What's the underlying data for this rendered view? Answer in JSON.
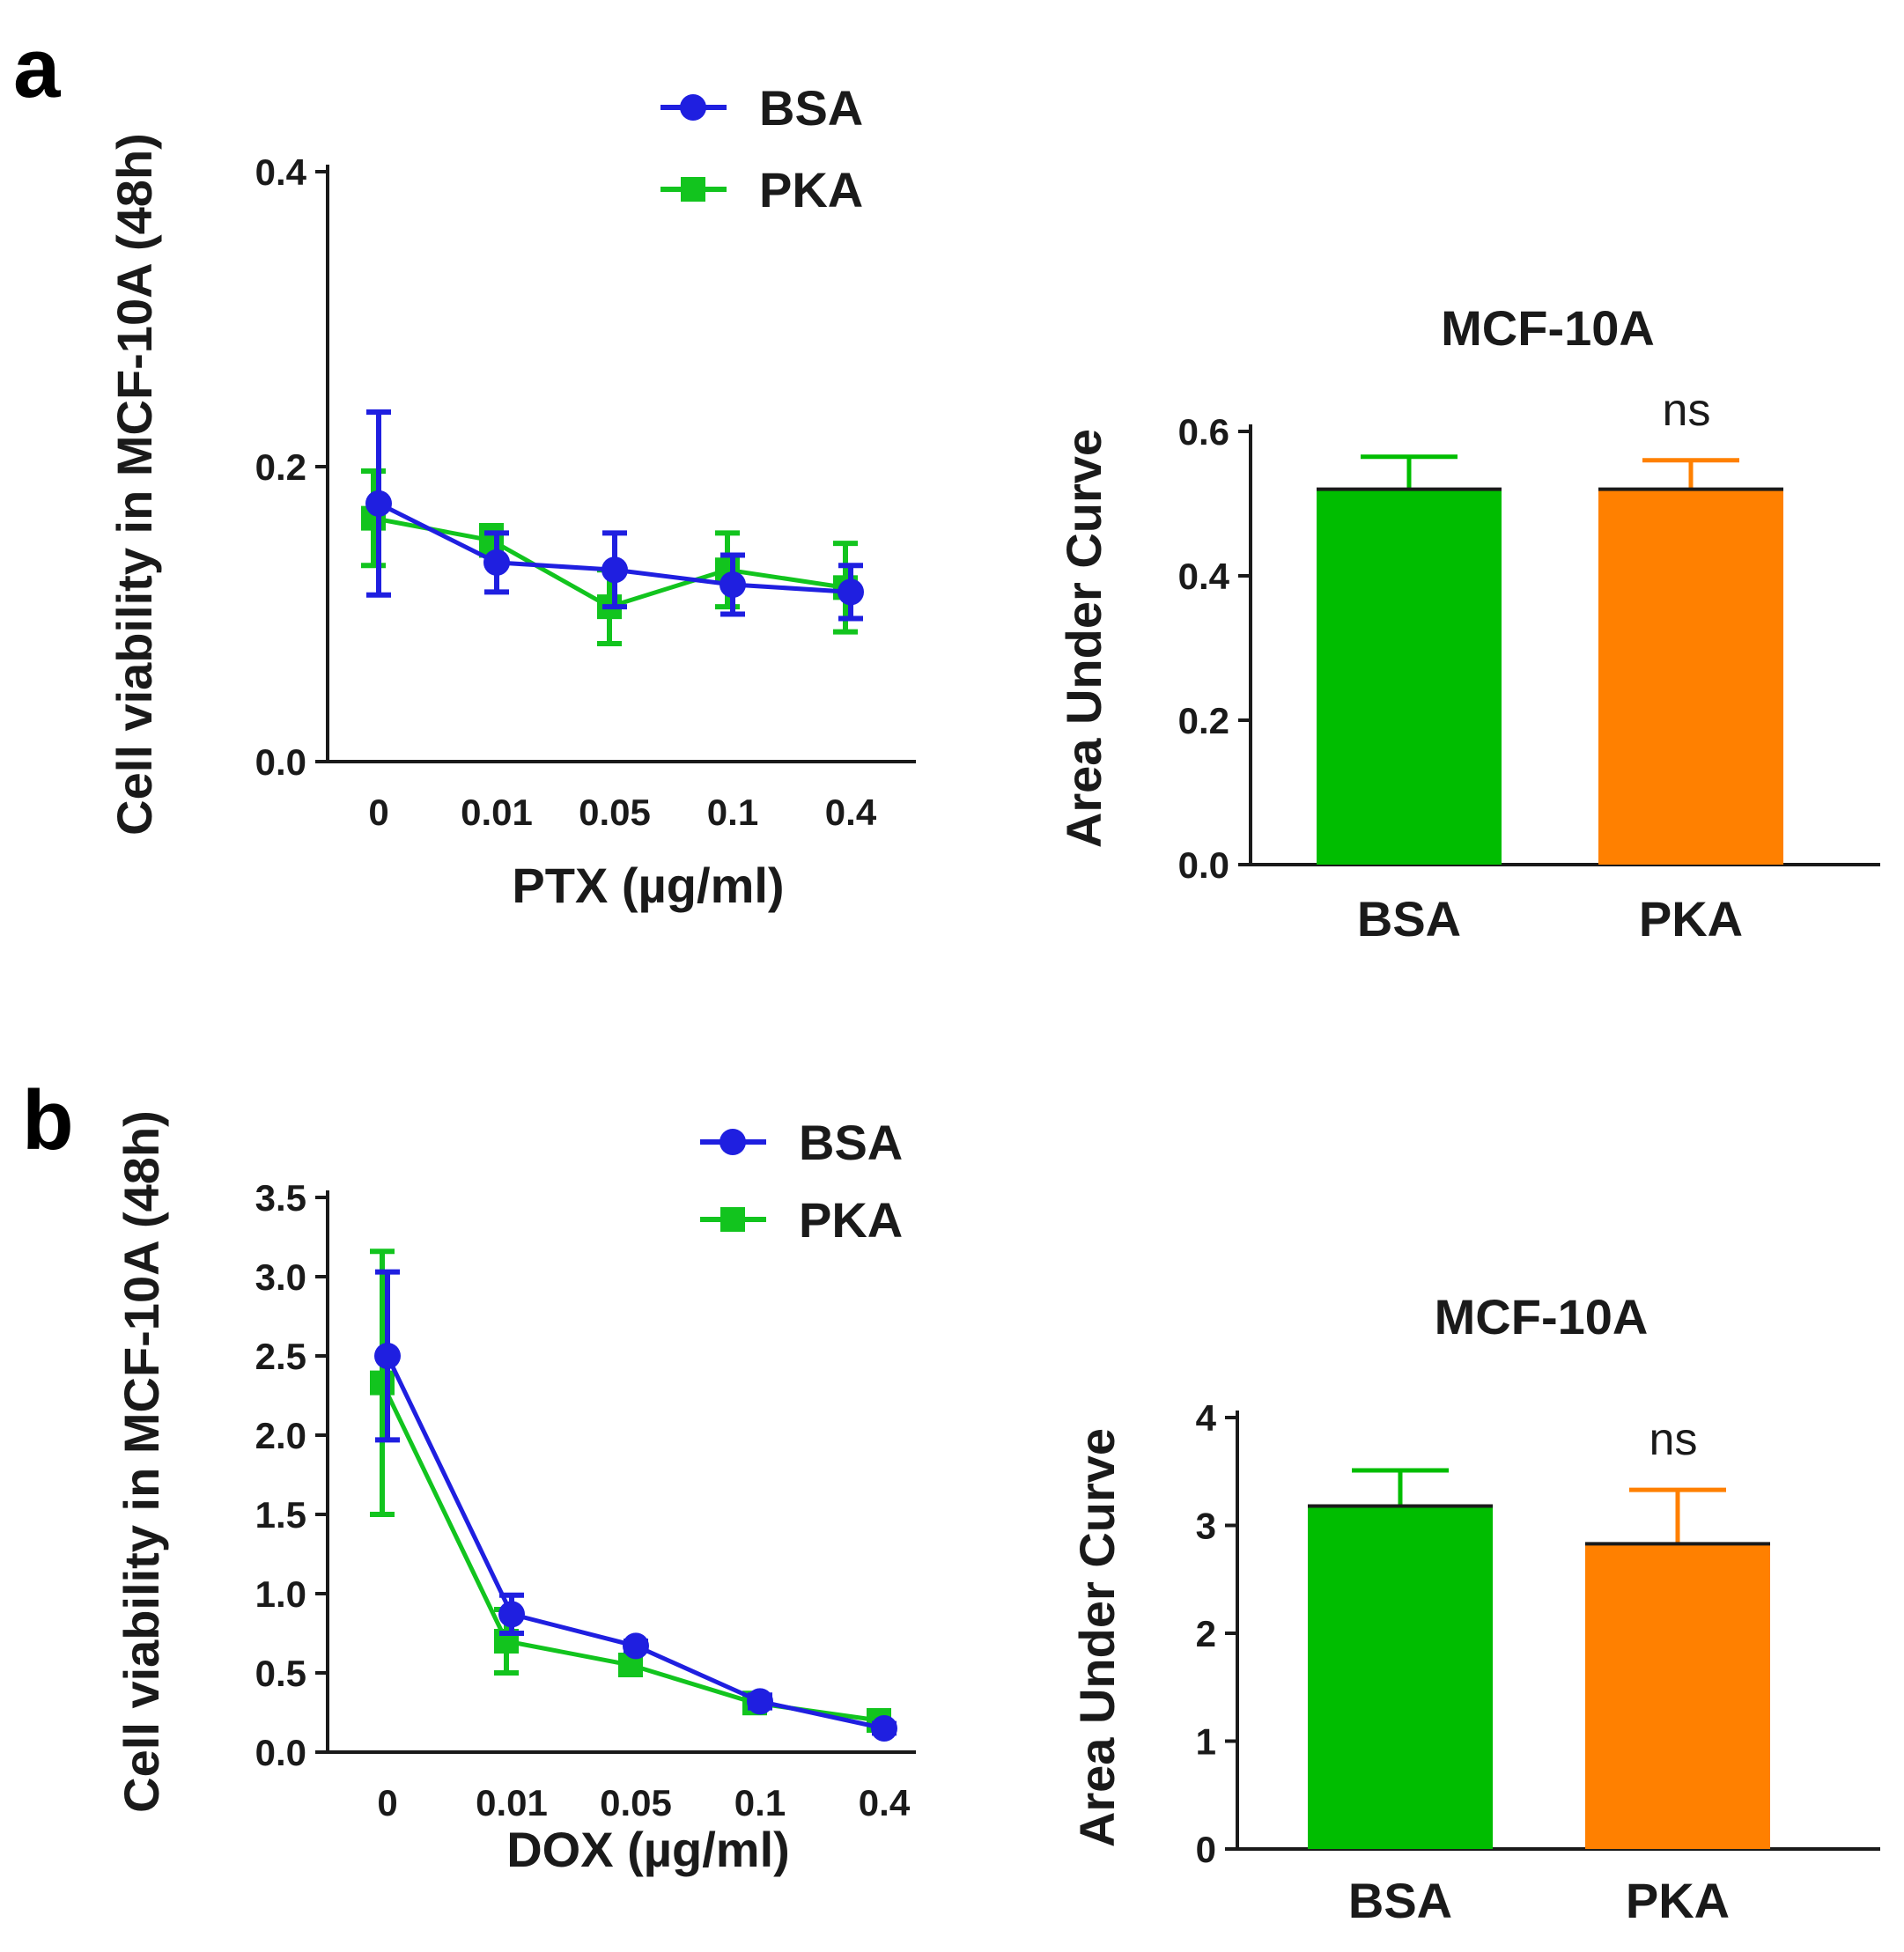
{
  "panels": [
    {
      "letter": "a"
    },
    {
      "letter": "b"
    }
  ],
  "colors": {
    "bsa_line": "#1f1fe0",
    "pka_line": "#12c41e",
    "bar_bsa": "#00bd00",
    "bar_pka": "#ff8000",
    "axis": "#1a1a1a"
  },
  "chart_data": [
    {
      "panel": "a",
      "type": "line",
      "x": [
        "0",
        "0.01",
        "0.05",
        "0.1",
        "0.4"
      ],
      "xlabel": "PTX (µg/ml)",
      "ylabel": "Cell viability in MCF-10A (48h)",
      "ylim": [
        0,
        0.4
      ],
      "yticks": [
        0,
        0.2,
        0.4
      ],
      "ytick_labels": [
        "0.0",
        "0.2",
        "0.4"
      ],
      "legend_position": "top-right",
      "series": [
        {
          "name": "BSA",
          "marker": "circle",
          "values": [
            0.175,
            0.135,
            0.13,
            0.12,
            0.115
          ],
          "err": [
            0.062,
            0.02,
            0.025,
            0.02,
            0.018
          ]
        },
        {
          "name": "PKA",
          "marker": "square",
          "values": [
            0.165,
            0.15,
            0.105,
            0.13,
            0.118
          ],
          "err": [
            0.032,
            0.01,
            0.025,
            0.025,
            0.03
          ]
        }
      ]
    },
    {
      "panel": "a",
      "type": "bar",
      "title": "MCF-10A",
      "categories": [
        "BSA",
        "PKA"
      ],
      "values": [
        0.52,
        0.52
      ],
      "err": [
        0.045,
        0.04
      ],
      "ylabel": "Area Under Curve",
      "ylim": [
        0,
        0.6
      ],
      "yticks": [
        0,
        0.2,
        0.4,
        0.6
      ],
      "ytick_labels": [
        "0.0",
        "0.2",
        "0.4",
        "0.6"
      ],
      "annotation": "ns"
    },
    {
      "panel": "b",
      "type": "line",
      "x": [
        "0",
        "0.01",
        "0.05",
        "0.1",
        "0.4"
      ],
      "xlabel": "DOX (µg/ml)",
      "ylabel": "Cell viability in MCF-10A (48h)",
      "ylim": [
        0,
        3.5
      ],
      "yticks": [
        0,
        0.5,
        1,
        1.5,
        2,
        2.5,
        3,
        3.5
      ],
      "ytick_labels": [
        "0.0",
        "0.5",
        "1.0",
        "1.5",
        "2.0",
        "2.5",
        "3.0",
        "3.5"
      ],
      "legend_position": "top-right",
      "series": [
        {
          "name": "BSA",
          "marker": "circle",
          "values": [
            2.5,
            0.87,
            0.67,
            0.32,
            0.15
          ],
          "err": [
            0.53,
            0.12,
            0.03,
            0.04,
            0.03
          ]
        },
        {
          "name": "PKA",
          "marker": "square",
          "values": [
            2.33,
            0.7,
            0.55,
            0.31,
            0.2
          ],
          "err": [
            0.83,
            0.2,
            0.04,
            0.04,
            0.03
          ]
        }
      ]
    },
    {
      "panel": "b",
      "type": "bar",
      "title": "MCF-10A",
      "categories": [
        "BSA",
        "PKA"
      ],
      "values": [
        3.18,
        2.83
      ],
      "err": [
        0.33,
        0.5
      ],
      "ylabel": "Area Under Curve",
      "ylim": [
        0,
        4
      ],
      "yticks": [
        0,
        1,
        2,
        3,
        4
      ],
      "ytick_labels": [
        "0",
        "1",
        "2",
        "3",
        "4"
      ],
      "annotation": "ns"
    }
  ]
}
